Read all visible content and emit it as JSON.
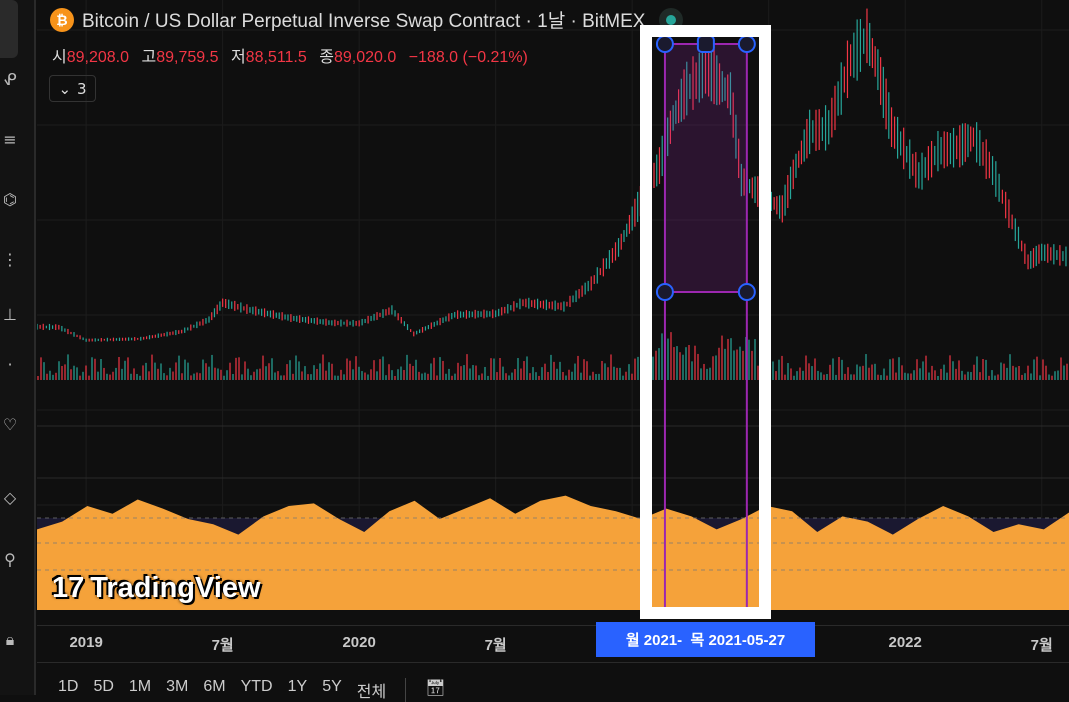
{
  "header": {
    "title": "Bitcoin / US Dollar Perpetual Inverse Swap Contract · 1날 · BitMEX",
    "coin_symbol": "₿"
  },
  "ohlc": {
    "open_label": "시",
    "open": "89,208.0",
    "high_label": "고",
    "high": "89,759.5",
    "low_label": "저",
    "low": "88,511.5",
    "close_label": "종",
    "close": "89,020.0",
    "change": "−188.0 (−0.21%)"
  },
  "indicators_toggle": {
    "count": "3"
  },
  "logo": {
    "text": "TradingView",
    "mark": "17"
  },
  "time_axis": {
    "ticks": [
      {
        "label": "2019",
        "t": 2019.0
      },
      {
        "label": "7월",
        "t": 2019.5
      },
      {
        "label": "2020",
        "t": 2020.0
      },
      {
        "label": "7월",
        "t": 2020.5
      },
      {
        "label": "2022",
        "t": 2022.0
      },
      {
        "label": "7월",
        "t": 2022.5
      }
    ],
    "crosshair_label": "월 2021-  목 2021-05-27"
  },
  "range_buttons": [
    "1D",
    "5D",
    "1M",
    "3M",
    "6M",
    "YTD",
    "1Y",
    "5Y",
    "전체"
  ],
  "colors": {
    "up": "#26a69a",
    "down": "#f23645",
    "osc": "#f5a23a",
    "selection": "#9c27b0",
    "handle": "#2962ff"
  },
  "chart_data": {
    "type": "line",
    "x_start": 2018.82,
    "x_end": 2022.6,
    "price": {
      "t": [
        2018.82,
        2018.9,
        2019.0,
        2019.2,
        2019.35,
        2019.45,
        2019.5,
        2019.6,
        2019.75,
        2019.9,
        2020.0,
        2020.12,
        2020.2,
        2020.35,
        2020.5,
        2020.6,
        2020.75,
        2020.85,
        2020.95,
        2021.0,
        2021.05,
        2021.1,
        2021.15,
        2021.2,
        2021.28,
        2021.32,
        2021.36,
        2021.4,
        2021.45,
        2021.5,
        2021.55,
        2021.6,
        2021.65,
        2021.72,
        2021.8,
        2021.86,
        2021.9,
        2021.95,
        2022.05,
        2022.12,
        2022.2,
        2022.25,
        2022.32,
        2022.38,
        2022.45,
        2022.5,
        2022.6
      ],
      "v": [
        6500,
        6400,
        3700,
        4000,
        5500,
        8000,
        11500,
        10000,
        8300,
        7300,
        7200,
        10000,
        5000,
        9000,
        9200,
        11500,
        10700,
        15500,
        23000,
        29000,
        35000,
        40000,
        50000,
        56000,
        60000,
        57000,
        55000,
        37000,
        35000,
        33000,
        31000,
        40000,
        47000,
        48000,
        62000,
        67000,
        60000,
        48000,
        38000,
        43000,
        44000,
        46000,
        39000,
        30000,
        20000,
        22000,
        21000
      ]
    },
    "oscillator": [
      62,
      68,
      80,
      74,
      85,
      78,
      70,
      66,
      58,
      72,
      80,
      82,
      70,
      60,
      76,
      84,
      70,
      78,
      86,
      74,
      84,
      88,
      80,
      76,
      70,
      78,
      72,
      62,
      70,
      80,
      76,
      60,
      72,
      68,
      58,
      70,
      80,
      72,
      60,
      66,
      62,
      75
    ],
    "selection": {
      "start": 2021.12,
      "end": 2021.42,
      "high": 69000,
      "low": 16000
    }
  }
}
